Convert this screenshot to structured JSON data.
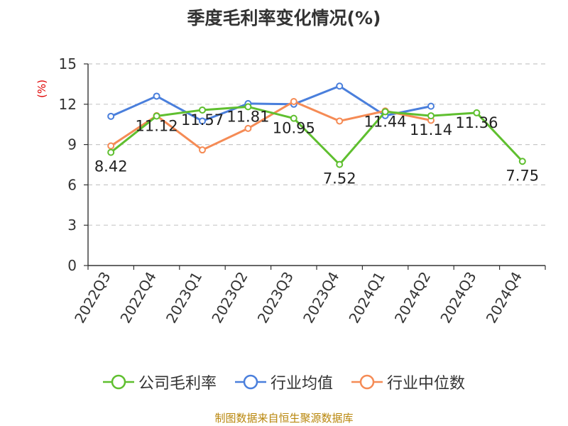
{
  "chart_data": {
    "type": "line",
    "title": "季度毛利率变化情况(%)",
    "ylabel": "(%)",
    "xlabel": "",
    "ylim": [
      0,
      15
    ],
    "yticks": [
      0,
      3,
      6,
      9,
      12,
      15
    ],
    "grid": true,
    "legend_position": "bottom",
    "categories": [
      "2022Q3",
      "2022Q4",
      "2023Q1",
      "2023Q2",
      "2023Q3",
      "2023Q4",
      "2024Q1",
      "2024Q2",
      "2024Q3",
      "2024Q4"
    ],
    "series": [
      {
        "name": "公司毛利率",
        "color": "#5fbf2f",
        "labeled": true,
        "values": [
          8.42,
          11.12,
          11.57,
          11.81,
          10.95,
          7.52,
          11.44,
          11.14,
          11.36,
          7.75
        ]
      },
      {
        "name": "行业均值",
        "color": "#4a7fdc",
        "labeled": false,
        "values": [
          11.1,
          12.6,
          10.75,
          12.05,
          12.0,
          13.35,
          11.15,
          11.85,
          null,
          null
        ]
      },
      {
        "name": "行业中位数",
        "color": "#f58b55",
        "labeled": false,
        "values": [
          8.9,
          11.15,
          8.6,
          10.2,
          12.2,
          10.75,
          11.5,
          10.8,
          null,
          null
        ]
      }
    ]
  },
  "footer": {
    "source": "制图数据来自恒生聚源数据库"
  }
}
